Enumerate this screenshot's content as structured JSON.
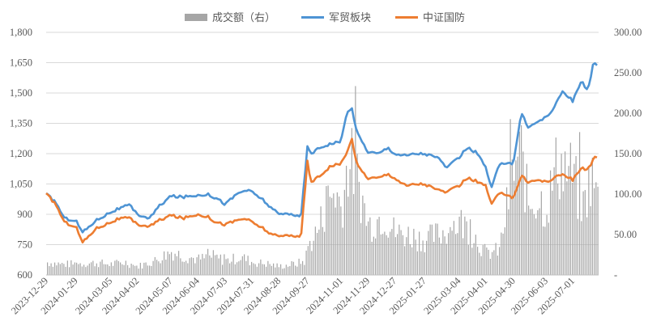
{
  "chart_data": {
    "type": "line",
    "legend": {
      "position": "top-center",
      "items": [
        {
          "name": "成交额（右）",
          "kind": "bar",
          "color": "#a6a6a6"
        },
        {
          "name": "军贸板块",
          "kind": "line",
          "color": "#4e94d4"
        },
        {
          "name": "中证国防",
          "kind": "line",
          "color": "#ed7d31"
        }
      ]
    },
    "x_tick_labels": [
      "2023-12-29",
      "2024-01-29",
      "2024-03-05",
      "2024-04-02",
      "2024-05-07",
      "2024-06-04",
      "2024-07-03",
      "2024-07-31",
      "2024-08-28",
      "2024-09-27",
      "2024-11-01",
      "2024-11-29",
      "2024-12-27",
      "2025-01-27",
      "2025-03-04",
      "2025-04-01",
      "2025-04-30",
      "2025-06-03",
      "2025-07-01"
    ],
    "y_left": {
      "min": 600,
      "max": 1800,
      "ticks": [
        "600",
        "750",
        "900",
        "1,050",
        "1,200",
        "1,350",
        "1,500",
        "1,650",
        "1,800"
      ]
    },
    "y_right": {
      "min": 0,
      "max": 300,
      "ticks": [
        "-",
        "50.00",
        "100.00",
        "150.00",
        "200.00",
        "250.00",
        "300.00"
      ]
    },
    "grid": "horizontal",
    "series": [
      {
        "name": "军贸板块",
        "axis": "left",
        "color": "#4e94d4",
        "x": [
          "2023-12-29",
          "2024-01-08",
          "2024-01-17",
          "2024-01-29",
          "2024-02-05",
          "2024-02-19",
          "2024-03-05",
          "2024-03-15",
          "2024-03-25",
          "2024-04-02",
          "2024-04-15",
          "2024-04-25",
          "2024-05-07",
          "2024-05-20",
          "2024-06-04",
          "2024-06-14",
          "2024-06-24",
          "2024-07-03",
          "2024-07-15",
          "2024-07-24",
          "2024-07-31",
          "2024-08-12",
          "2024-08-20",
          "2024-08-28",
          "2024-09-10",
          "2024-09-20",
          "2024-09-27",
          "2024-09-30",
          "2024-10-10",
          "2024-10-21",
          "2024-11-01",
          "2024-11-07",
          "2024-11-12",
          "2024-11-18",
          "2024-11-29",
          "2024-12-10",
          "2024-12-20",
          "2024-12-27",
          "2025-01-08",
          "2025-01-17",
          "2025-01-27",
          "2025-02-10",
          "2025-02-20",
          "2025-03-04",
          "2025-03-13",
          "2025-03-24",
          "2025-04-01",
          "2025-04-07",
          "2025-04-15",
          "2025-04-24",
          "2025-04-30",
          "2025-05-08",
          "2025-05-16",
          "2025-05-26",
          "2025-06-03",
          "2025-06-12",
          "2025-06-20",
          "2025-07-01",
          "2025-07-10",
          "2025-07-17",
          "2025-07-22",
          "2025-07-25",
          "2025-07-28"
        ],
        "values": [
          1000,
          960,
          880,
          870,
          810,
          870,
          910,
          930,
          945,
          900,
          880,
          940,
          990,
          985,
          995,
          1000,
          980,
          950,
          1000,
          1020,
          1010,
          970,
          930,
          900,
          905,
          880,
          1240,
          1200,
          1230,
          1250,
          1260,
          1400,
          1430,
          1300,
          1210,
          1200,
          1230,
          1200,
          1190,
          1200,
          1200,
          1180,
          1130,
          1180,
          1230,
          1200,
          1130,
          1030,
          1140,
          1160,
          1150,
          1400,
          1330,
          1360,
          1380,
          1430,
          1510,
          1460,
          1560,
          1510,
          1640,
          1650,
          1620
        ]
      },
      {
        "name": "中证国防",
        "axis": "left",
        "color": "#ed7d31",
        "x": [
          "2023-12-29",
          "2024-01-08",
          "2024-01-17",
          "2024-01-29",
          "2024-02-05",
          "2024-02-19",
          "2024-03-05",
          "2024-03-15",
          "2024-03-25",
          "2024-04-02",
          "2024-04-15",
          "2024-04-25",
          "2024-05-07",
          "2024-05-20",
          "2024-06-04",
          "2024-06-14",
          "2024-06-24",
          "2024-07-03",
          "2024-07-15",
          "2024-07-24",
          "2024-07-31",
          "2024-08-12",
          "2024-08-20",
          "2024-08-28",
          "2024-09-10",
          "2024-09-20",
          "2024-09-27",
          "2024-09-30",
          "2024-10-10",
          "2024-10-21",
          "2024-11-01",
          "2024-11-07",
          "2024-11-12",
          "2024-11-18",
          "2024-11-29",
          "2024-12-10",
          "2024-12-20",
          "2024-12-27",
          "2025-01-08",
          "2025-01-17",
          "2025-01-27",
          "2025-02-10",
          "2025-02-20",
          "2025-03-04",
          "2025-03-13",
          "2025-03-24",
          "2025-04-01",
          "2025-04-07",
          "2025-04-15",
          "2025-04-24",
          "2025-04-30",
          "2025-05-08",
          "2025-05-16",
          "2025-05-26",
          "2025-06-03",
          "2025-06-12",
          "2025-06-20",
          "2025-07-01",
          "2025-07-10",
          "2025-07-17",
          "2025-07-22",
          "2025-07-25",
          "2025-07-28"
        ],
        "values": [
          1000,
          950,
          860,
          840,
          760,
          830,
          860,
          880,
          880,
          850,
          840,
          870,
          895,
          880,
          900,
          890,
          860,
          850,
          870,
          880,
          860,
          830,
          800,
          790,
          800,
          780,
          1170,
          1060,
          1090,
          1140,
          1150,
          1200,
          1280,
          1140,
          1080,
          1080,
          1100,
          1080,
          1040,
          1050,
          1050,
          1020,
          1010,
          1040,
          1080,
          1060,
          1040,
          950,
          1000,
          1000,
          980,
          1090,
          1060,
          1070,
          1060,
          1080,
          1100,
          1070,
          1130,
          1120,
          1170,
          1190,
          1170
        ]
      },
      {
        "name": "成交额（右）",
        "axis": "right",
        "type": "bar",
        "color": "#a6a6a6",
        "x": [
          "2023-12-29",
          "2024-01-15",
          "2024-02-01",
          "2024-02-20",
          "2024-03-05",
          "2024-03-20",
          "2024-04-02",
          "2024-04-20",
          "2024-05-07",
          "2024-05-20",
          "2024-06-04",
          "2024-06-20",
          "2024-07-03",
          "2024-07-20",
          "2024-07-31",
          "2024-08-15",
          "2024-08-28",
          "2024-09-15",
          "2024-09-24",
          "2024-09-27",
          "2024-10-08",
          "2024-10-15",
          "2024-10-25",
          "2024-11-01",
          "2024-11-08",
          "2024-11-15",
          "2024-11-29",
          "2024-12-15",
          "2024-12-27",
          "2025-01-15",
          "2025-01-27",
          "2025-02-15",
          "2025-03-04",
          "2025-03-15",
          "2025-03-25",
          "2025-04-01",
          "2025-04-15",
          "2025-04-30",
          "2025-05-08",
          "2025-05-15",
          "2025-05-25",
          "2025-06-03",
          "2025-06-15",
          "2025-07-01",
          "2025-07-10",
          "2025-07-20",
          "2025-07-28"
        ],
        "values": [
          18,
          15,
          16,
          17,
          15,
          18,
          12,
          20,
          33,
          27,
          22,
          26,
          20,
          25,
          18,
          16,
          12,
          16,
          20,
          40,
          65,
          95,
          120,
          95,
          160,
          150,
          70,
          85,
          60,
          55,
          50,
          60,
          75,
          65,
          45,
          30,
          35,
          150,
          170,
          100,
          110,
          95,
          160,
          140,
          90,
          140,
          100
        ]
      }
    ]
  }
}
